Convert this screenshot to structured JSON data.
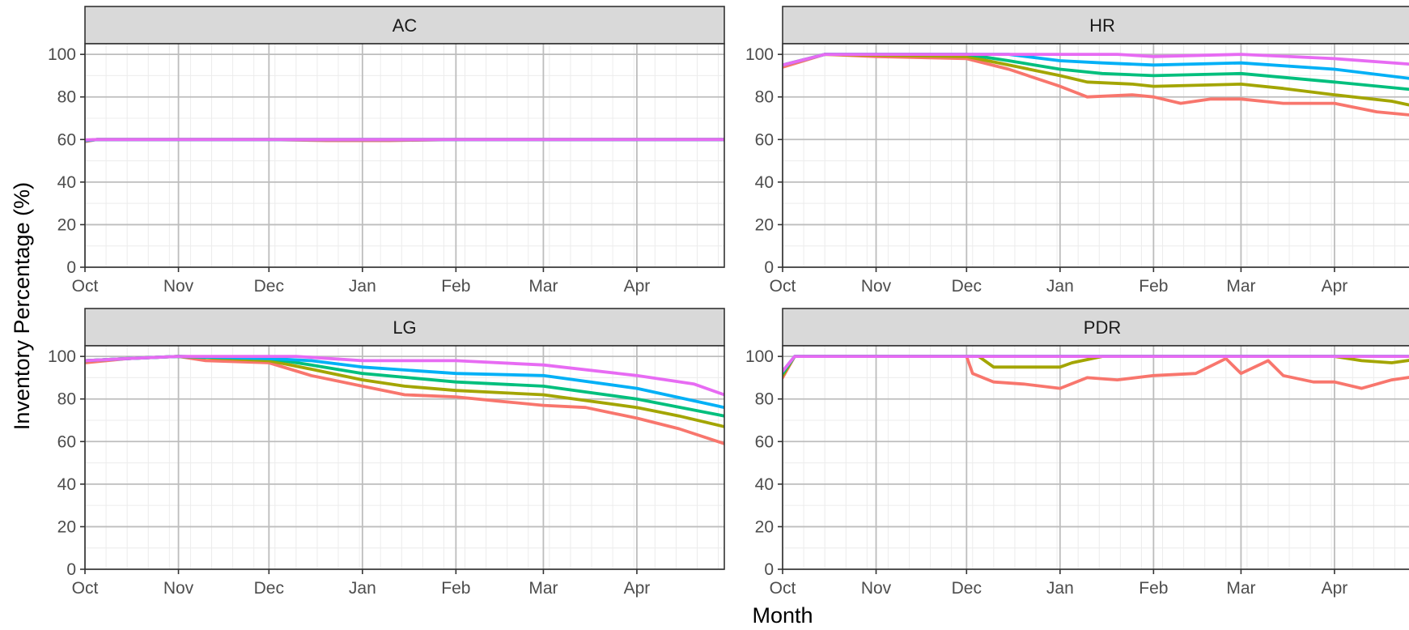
{
  "chart_data": {
    "type": "line",
    "layout": "facet-grid-2x2",
    "xlabel": "Month",
    "ylabel": "Inventory Percentage (%)",
    "x_unit": "day",
    "x_range": [
      "2023-10-01",
      "2024-04-30"
    ],
    "x_ticks": [
      {
        "date": "2023-10-01",
        "label": "Oct"
      },
      {
        "date": "2023-11-01",
        "label": "Nov"
      },
      {
        "date": "2023-12-01",
        "label": "Dec"
      },
      {
        "date": "2024-01-01",
        "label": "Jan"
      },
      {
        "date": "2024-02-01",
        "label": "Feb"
      },
      {
        "date": "2024-03-01",
        "label": "Mar"
      },
      {
        "date": "2024-04-01",
        "label": "Apr"
      }
    ],
    "ylim": [
      0,
      105
    ],
    "y_ticks": [
      0,
      20,
      40,
      60,
      80,
      100
    ],
    "grid": true,
    "legend": "none",
    "series_colors": [
      "#F8766D",
      "#A3A500",
      "#00BF7D",
      "#00B0F6",
      "#E76BF3"
    ],
    "panels": [
      {
        "title": "AC",
        "series": [
          {
            "color": "#F8766D",
            "points": [
              [
                "2023-10-01",
                59
              ],
              [
                "2023-10-05",
                60
              ],
              [
                "2023-12-01",
                60
              ],
              [
                "2023-12-20",
                59.5
              ],
              [
                "2024-01-10",
                59.5
              ],
              [
                "2024-02-01",
                60
              ],
              [
                "2024-04-30",
                60
              ]
            ]
          },
          {
            "color": "#A3A500",
            "points": [
              [
                "2023-10-01",
                59.5
              ],
              [
                "2023-10-05",
                60
              ],
              [
                "2024-04-30",
                60
              ]
            ]
          },
          {
            "color": "#00BF7D",
            "points": [
              [
                "2023-10-01",
                59.5
              ],
              [
                "2023-10-05",
                60
              ],
              [
                "2024-04-30",
                60
              ]
            ]
          },
          {
            "color": "#00B0F6",
            "points": [
              [
                "2023-10-01",
                59.5
              ],
              [
                "2023-10-05",
                60
              ],
              [
                "2024-04-30",
                60
              ]
            ]
          },
          {
            "color": "#E76BF3",
            "points": [
              [
                "2023-10-01",
                59.8
              ],
              [
                "2023-10-05",
                60
              ],
              [
                "2024-04-30",
                60
              ]
            ]
          }
        ]
      },
      {
        "title": "HR",
        "series": [
          {
            "color": "#F8766D",
            "points": [
              [
                "2023-10-01",
                94
              ],
              [
                "2023-10-08",
                97
              ],
              [
                "2023-10-15",
                100
              ],
              [
                "2023-11-01",
                99
              ],
              [
                "2023-12-01",
                98
              ],
              [
                "2023-12-15",
                93
              ],
              [
                "2024-01-01",
                85
              ],
              [
                "2024-01-10",
                80
              ],
              [
                "2024-01-25",
                81
              ],
              [
                "2024-02-01",
                80
              ],
              [
                "2024-02-10",
                77
              ],
              [
                "2024-02-20",
                79
              ],
              [
                "2024-03-01",
                79
              ],
              [
                "2024-03-15",
                77
              ],
              [
                "2024-04-01",
                77
              ],
              [
                "2024-04-15",
                73
              ],
              [
                "2024-04-30",
                71
              ]
            ]
          },
          {
            "color": "#A3A500",
            "points": [
              [
                "2023-10-01",
                95
              ],
              [
                "2023-10-15",
                100
              ],
              [
                "2023-12-01",
                99
              ],
              [
                "2023-12-15",
                95
              ],
              [
                "2024-01-01",
                90
              ],
              [
                "2024-01-10",
                87
              ],
              [
                "2024-01-25",
                86
              ],
              [
                "2024-02-01",
                85
              ],
              [
                "2024-03-01",
                86
              ],
              [
                "2024-03-15",
                84
              ],
              [
                "2024-04-01",
                81
              ],
              [
                "2024-04-20",
                78
              ],
              [
                "2024-04-30",
                75
              ]
            ]
          },
          {
            "color": "#00BF7D",
            "points": [
              [
                "2023-10-01",
                95
              ],
              [
                "2023-10-15",
                100
              ],
              [
                "2023-12-01",
                100
              ],
              [
                "2023-12-15",
                97
              ],
              [
                "2024-01-01",
                93
              ],
              [
                "2024-01-15",
                91
              ],
              [
                "2024-02-01",
                90
              ],
              [
                "2024-03-01",
                91
              ],
              [
                "2024-04-01",
                87
              ],
              [
                "2024-04-30",
                83
              ]
            ]
          },
          {
            "color": "#00B0F6",
            "points": [
              [
                "2023-10-01",
                95
              ],
              [
                "2023-10-15",
                100
              ],
              [
                "2023-12-15",
                100
              ],
              [
                "2024-01-01",
                97
              ],
              [
                "2024-01-15",
                96
              ],
              [
                "2024-02-01",
                95
              ],
              [
                "2024-03-01",
                96
              ],
              [
                "2024-04-01",
                93
              ],
              [
                "2024-04-30",
                88
              ]
            ]
          },
          {
            "color": "#E76BF3",
            "points": [
              [
                "2023-10-01",
                95
              ],
              [
                "2023-10-15",
                100
              ],
              [
                "2024-01-20",
                100
              ],
              [
                "2024-02-01",
                99
              ],
              [
                "2024-03-01",
                100
              ],
              [
                "2024-04-01",
                98
              ],
              [
                "2024-04-30",
                95
              ]
            ]
          }
        ]
      },
      {
        "title": "LG",
        "series": [
          {
            "color": "#F8766D",
            "points": [
              [
                "2023-10-01",
                97
              ],
              [
                "2023-10-15",
                99
              ],
              [
                "2023-11-01",
                100
              ],
              [
                "2023-11-10",
                98
              ],
              [
                "2023-12-01",
                97
              ],
              [
                "2023-12-15",
                91
              ],
              [
                "2024-01-01",
                86
              ],
              [
                "2024-01-15",
                82
              ],
              [
                "2024-02-01",
                81
              ],
              [
                "2024-02-15",
                79
              ],
              [
                "2024-03-01",
                77
              ],
              [
                "2024-03-15",
                76
              ],
              [
                "2024-04-01",
                71
              ],
              [
                "2024-04-15",
                66
              ],
              [
                "2024-04-30",
                59
              ]
            ]
          },
          {
            "color": "#A3A500",
            "points": [
              [
                "2023-10-01",
                98
              ],
              [
                "2023-10-15",
                99
              ],
              [
                "2023-11-01",
                100
              ],
              [
                "2023-12-01",
                98
              ],
              [
                "2023-12-15",
                94
              ],
              [
                "2024-01-01",
                89
              ],
              [
                "2024-01-15",
                86
              ],
              [
                "2024-02-01",
                84
              ],
              [
                "2024-03-01",
                82
              ],
              [
                "2024-04-01",
                76
              ],
              [
                "2024-04-15",
                72
              ],
              [
                "2024-04-30",
                67
              ]
            ]
          },
          {
            "color": "#00BF7D",
            "points": [
              [
                "2023-10-01",
                98
              ],
              [
                "2023-10-15",
                99
              ],
              [
                "2023-11-01",
                100
              ],
              [
                "2023-12-01",
                99
              ],
              [
                "2023-12-15",
                96
              ],
              [
                "2024-01-01",
                92
              ],
              [
                "2024-02-01",
                88
              ],
              [
                "2024-03-01",
                86
              ],
              [
                "2024-04-01",
                80
              ],
              [
                "2024-04-30",
                72
              ]
            ]
          },
          {
            "color": "#00B0F6",
            "points": [
              [
                "2023-10-01",
                98
              ],
              [
                "2023-10-15",
                99
              ],
              [
                "2023-11-01",
                100
              ],
              [
                "2023-12-01",
                99
              ],
              [
                "2023-12-15",
                98
              ],
              [
                "2024-01-01",
                95
              ],
              [
                "2024-02-01",
                92
              ],
              [
                "2024-03-01",
                91
              ],
              [
                "2024-04-01",
                85
              ],
              [
                "2024-04-30",
                76
              ]
            ]
          },
          {
            "color": "#E76BF3",
            "points": [
              [
                "2023-10-01",
                98
              ],
              [
                "2023-10-15",
                99
              ],
              [
                "2023-11-01",
                100
              ],
              [
                "2023-12-10",
                100
              ],
              [
                "2024-01-01",
                98
              ],
              [
                "2024-02-01",
                98
              ],
              [
                "2024-03-01",
                96
              ],
              [
                "2024-04-01",
                91
              ],
              [
                "2024-04-20",
                87
              ],
              [
                "2024-04-30",
                82
              ]
            ]
          }
        ]
      },
      {
        "title": "PDR",
        "series": [
          {
            "color": "#F8766D",
            "points": [
              [
                "2023-10-01",
                90
              ],
              [
                "2023-10-05",
                100
              ],
              [
                "2023-12-01",
                100
              ],
              [
                "2023-12-03",
                92
              ],
              [
                "2023-12-10",
                88
              ],
              [
                "2023-12-20",
                87
              ],
              [
                "2024-01-01",
                85
              ],
              [
                "2024-01-10",
                90
              ],
              [
                "2024-01-20",
                89
              ],
              [
                "2024-02-01",
                91
              ],
              [
                "2024-02-15",
                92
              ],
              [
                "2024-02-25",
                99
              ],
              [
                "2024-03-01",
                92
              ],
              [
                "2024-03-10",
                98
              ],
              [
                "2024-03-15",
                91
              ],
              [
                "2024-03-25",
                88
              ],
              [
                "2024-04-01",
                88
              ],
              [
                "2024-04-10",
                85
              ],
              [
                "2024-04-20",
                89
              ],
              [
                "2024-04-30",
                91
              ]
            ]
          },
          {
            "color": "#A3A500",
            "points": [
              [
                "2023-10-01",
                91
              ],
              [
                "2023-10-05",
                100
              ],
              [
                "2023-12-05",
                100
              ],
              [
                "2023-12-10",
                95
              ],
              [
                "2024-01-01",
                95
              ],
              [
                "2024-01-05",
                97
              ],
              [
                "2024-01-15",
                100
              ],
              [
                "2024-04-01",
                100
              ],
              [
                "2024-04-10",
                98
              ],
              [
                "2024-04-20",
                97
              ],
              [
                "2024-04-30",
                99
              ]
            ]
          },
          {
            "color": "#00BF7D",
            "points": [
              [
                "2023-10-01",
                92
              ],
              [
                "2023-10-05",
                100
              ],
              [
                "2024-04-30",
                100
              ]
            ]
          },
          {
            "color": "#00B0F6",
            "points": [
              [
                "2023-10-01",
                93
              ],
              [
                "2023-10-05",
                100
              ],
              [
                "2024-04-30",
                100
              ]
            ]
          },
          {
            "color": "#E76BF3",
            "points": [
              [
                "2023-10-01",
                93
              ],
              [
                "2023-10-05",
                100
              ],
              [
                "2024-04-30",
                100
              ]
            ]
          }
        ]
      }
    ]
  }
}
